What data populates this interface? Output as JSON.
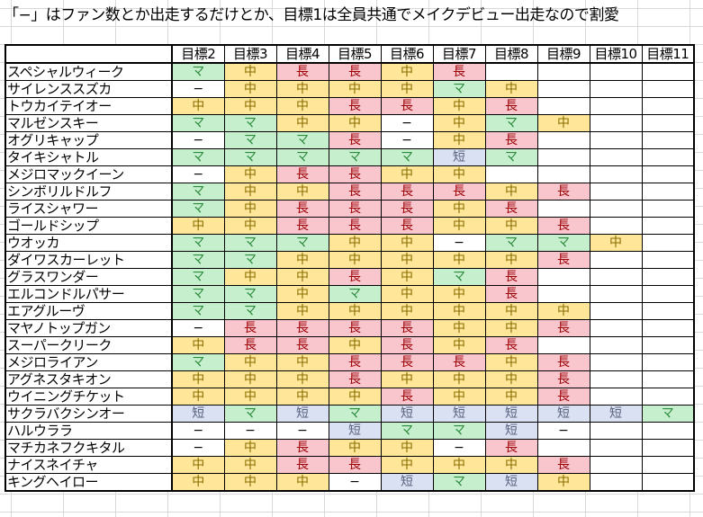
{
  "note": "「−」はファン数とか出走するだけとか、目標1は全員共通でメイクデビュー出走なので割愛",
  "legend": {
    "マ": {
      "meaning": "mile",
      "bg": "#c6efce",
      "fg": "#2e8b3d"
    },
    "中": {
      "meaning": "middle",
      "bg": "#ffe699",
      "fg": "#8a6d00"
    },
    "長": {
      "meaning": "long",
      "bg": "#f8c6cc",
      "fg": "#9c0006"
    },
    "短": {
      "meaning": "short",
      "bg": "#dae1f2",
      "fg": "#5a6480"
    },
    "−": {
      "meaning": "none",
      "bg": "#ffffff",
      "fg": "#000000"
    }
  },
  "table": {
    "corner": "",
    "headers": [
      "目標2",
      "目標3",
      "目標4",
      "目標5",
      "目標6",
      "目標7",
      "目標8",
      "目標9",
      "目標10",
      "目標11"
    ],
    "rows": [
      {
        "name": "スペシャルウィーク",
        "goals": [
          "マ",
          "中",
          "長",
          "長",
          "中",
          "長",
          "",
          "",
          "",
          ""
        ]
      },
      {
        "name": "サイレンススズカ",
        "goals": [
          "−",
          "中",
          "中",
          "中",
          "中",
          "マ",
          "中",
          "",
          "",
          ""
        ]
      },
      {
        "name": "トウカイテイオー",
        "goals": [
          "中",
          "中",
          "中",
          "長",
          "長",
          "中",
          "長",
          "",
          "",
          ""
        ]
      },
      {
        "name": "マルゼンスキー",
        "goals": [
          "マ",
          "マ",
          "中",
          "中",
          "−",
          "中",
          "マ",
          "中",
          "",
          ""
        ]
      },
      {
        "name": "オグリキャップ",
        "goals": [
          "−",
          "マ",
          "マ",
          "長",
          "−",
          "中",
          "長",
          "",
          "",
          ""
        ]
      },
      {
        "name": "タイキシャトル",
        "goals": [
          "マ",
          "マ",
          "マ",
          "マ",
          "マ",
          "短",
          "マ",
          "",
          "",
          ""
        ]
      },
      {
        "name": "メジロマックイーン",
        "goals": [
          "−",
          "中",
          "長",
          "長",
          "中",
          "中",
          "",
          "",
          "",
          ""
        ]
      },
      {
        "name": "シンボリルドルフ",
        "goals": [
          "マ",
          "中",
          "中",
          "長",
          "長",
          "長",
          "中",
          "長",
          "",
          ""
        ]
      },
      {
        "name": "ライスシャワー",
        "goals": [
          "マ",
          "中",
          "長",
          "長",
          "長",
          "中",
          "長",
          "",
          "",
          ""
        ]
      },
      {
        "name": "ゴールドシップ",
        "goals": [
          "中",
          "中",
          "長",
          "長",
          "長",
          "中",
          "中",
          "長",
          "",
          ""
        ]
      },
      {
        "name": "ウオッカ",
        "goals": [
          "マ",
          "マ",
          "マ",
          "中",
          "中",
          "−",
          "マ",
          "マ",
          "中",
          ""
        ]
      },
      {
        "name": "ダイワスカーレット",
        "goals": [
          "マ",
          "マ",
          "中",
          "中",
          "中",
          "中",
          "中",
          "長",
          "",
          ""
        ]
      },
      {
        "name": "グラスワンダー",
        "goals": [
          "マ",
          "中",
          "中",
          "長",
          "中",
          "マ",
          "長",
          "",
          "",
          ""
        ]
      },
      {
        "name": "エルコンドルパサー",
        "goals": [
          "マ",
          "マ",
          "中",
          "マ",
          "中",
          "中",
          "長",
          "",
          "",
          ""
        ]
      },
      {
        "name": "エアグルーヴ",
        "goals": [
          "マ",
          "マ",
          "中",
          "中",
          "中",
          "中",
          "中",
          "中",
          "",
          ""
        ]
      },
      {
        "name": "マヤノトップガン",
        "goals": [
          "−",
          "長",
          "長",
          "長",
          "長",
          "中",
          "中",
          "長",
          "",
          ""
        ]
      },
      {
        "name": "スーパークリーク",
        "goals": [
          "中",
          "長",
          "長",
          "中",
          "長",
          "中",
          "長",
          "",
          "",
          ""
        ]
      },
      {
        "name": "メジロライアン",
        "goals": [
          "マ",
          "中",
          "中",
          "長",
          "長",
          "長",
          "中",
          "長",
          "",
          ""
        ]
      },
      {
        "name": "アグネスタキオン",
        "goals": [
          "中",
          "中",
          "中",
          "長",
          "中",
          "中",
          "中",
          "長",
          "",
          ""
        ]
      },
      {
        "name": "ウイニングチケット",
        "goals": [
          "中",
          "中",
          "中",
          "中",
          "長",
          "中",
          "中",
          "長",
          "",
          ""
        ]
      },
      {
        "name": "サクラバクシンオー",
        "goals": [
          "短",
          "マ",
          "短",
          "マ",
          "短",
          "短",
          "短",
          "短",
          "短",
          "マ"
        ]
      },
      {
        "name": "ハルウララ",
        "goals": [
          "−",
          "−",
          "−",
          "短",
          "マ",
          "マ",
          "短",
          "−",
          "",
          ""
        ]
      },
      {
        "name": "マチカネフクキタル",
        "goals": [
          "−",
          "中",
          "長",
          "中",
          "中",
          "−",
          "長",
          "",
          "",
          ""
        ]
      },
      {
        "name": "ナイスネイチャ",
        "goals": [
          "中",
          "中",
          "長",
          "長",
          "中",
          "中",
          "中",
          "長",
          "",
          ""
        ]
      },
      {
        "name": "キングヘイロー",
        "goals": [
          "中",
          "中",
          "中",
          "−",
          "短",
          "マ",
          "短",
          "中",
          "",
          ""
        ]
      }
    ]
  }
}
